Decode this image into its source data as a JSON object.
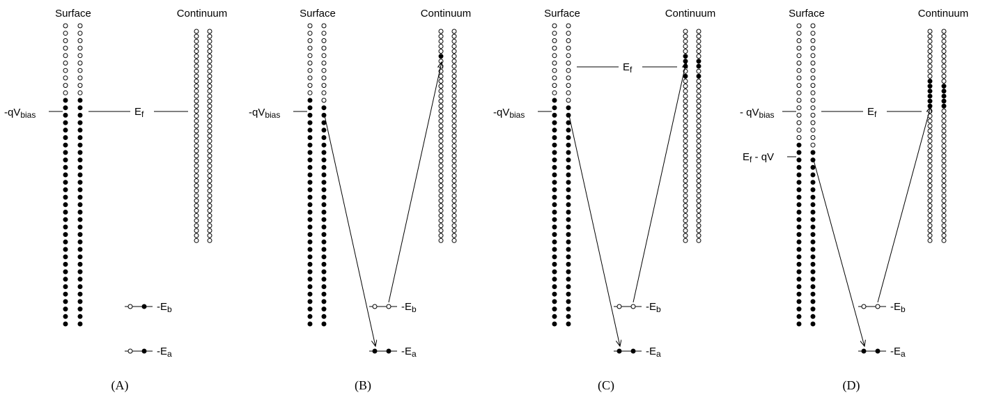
{
  "labels": {
    "surface": "Surface",
    "continuum": "Continuum",
    "bias": "-qV",
    "bias_spaced": "- qV",
    "bias_sub": "bias",
    "fermi": "E",
    "fermi_sub": "f",
    "fermi_minus": "E",
    "fermi_minus_sub": "f",
    "fermi_minus_rest": " - qV",
    "eb": "-E",
    "eb_sub": "b",
    "ea": "-E",
    "ea_sub": "a"
  },
  "panels": [
    {
      "id": "A",
      "caption": "(A)",
      "surface_filled_from_row": 10,
      "surface_hole_rows": [],
      "continuum_filled_rows": [],
      "eb_dots": [
        "open",
        "filled"
      ],
      "ea_dots": [
        "open",
        "filled"
      ],
      "arrows": false
    },
    {
      "id": "B",
      "caption": "(B)",
      "surface_filled_from_row": 10,
      "surface_hole_rows": [
        [
          10,
          1
        ]
      ],
      "continuum_filled_rows": [
        [
          5,
          0
        ]
      ],
      "eb_dots": [
        "open",
        "open"
      ],
      "ea_dots": [
        "filled",
        "filled"
      ],
      "arrows": true
    },
    {
      "id": "C",
      "caption": "(C)",
      "surface_filled_from_row": 10,
      "surface_hole_rows": [
        [
          10,
          1
        ]
      ],
      "continuum_filled_rows": [
        [
          5,
          0
        ],
        [
          6,
          0
        ],
        [
          6,
          1
        ],
        [
          7,
          0
        ],
        [
          7,
          1
        ],
        [
          9,
          0
        ],
        [
          9,
          1
        ]
      ],
      "eb_dots": [
        "open",
        "open"
      ],
      "ea_dots": [
        "filled",
        "filled"
      ],
      "arrows": true
    },
    {
      "id": "D",
      "caption": "(D)",
      "surface_filled_from_row": 16,
      "surface_hole_rows": [
        [
          16,
          1
        ]
      ],
      "continuum_filled_rows": [
        [
          10,
          0
        ],
        [
          11,
          0
        ],
        [
          11,
          1
        ],
        [
          12,
          0
        ],
        [
          12,
          1
        ],
        [
          13,
          0
        ],
        [
          13,
          1
        ],
        [
          14,
          0
        ],
        [
          14,
          1
        ],
        [
          15,
          0
        ],
        [
          15,
          1
        ]
      ],
      "eb_dots": [
        "open",
        "open"
      ],
      "ea_dots": [
        "filled",
        "filled"
      ],
      "arrows": true
    }
  ]
}
